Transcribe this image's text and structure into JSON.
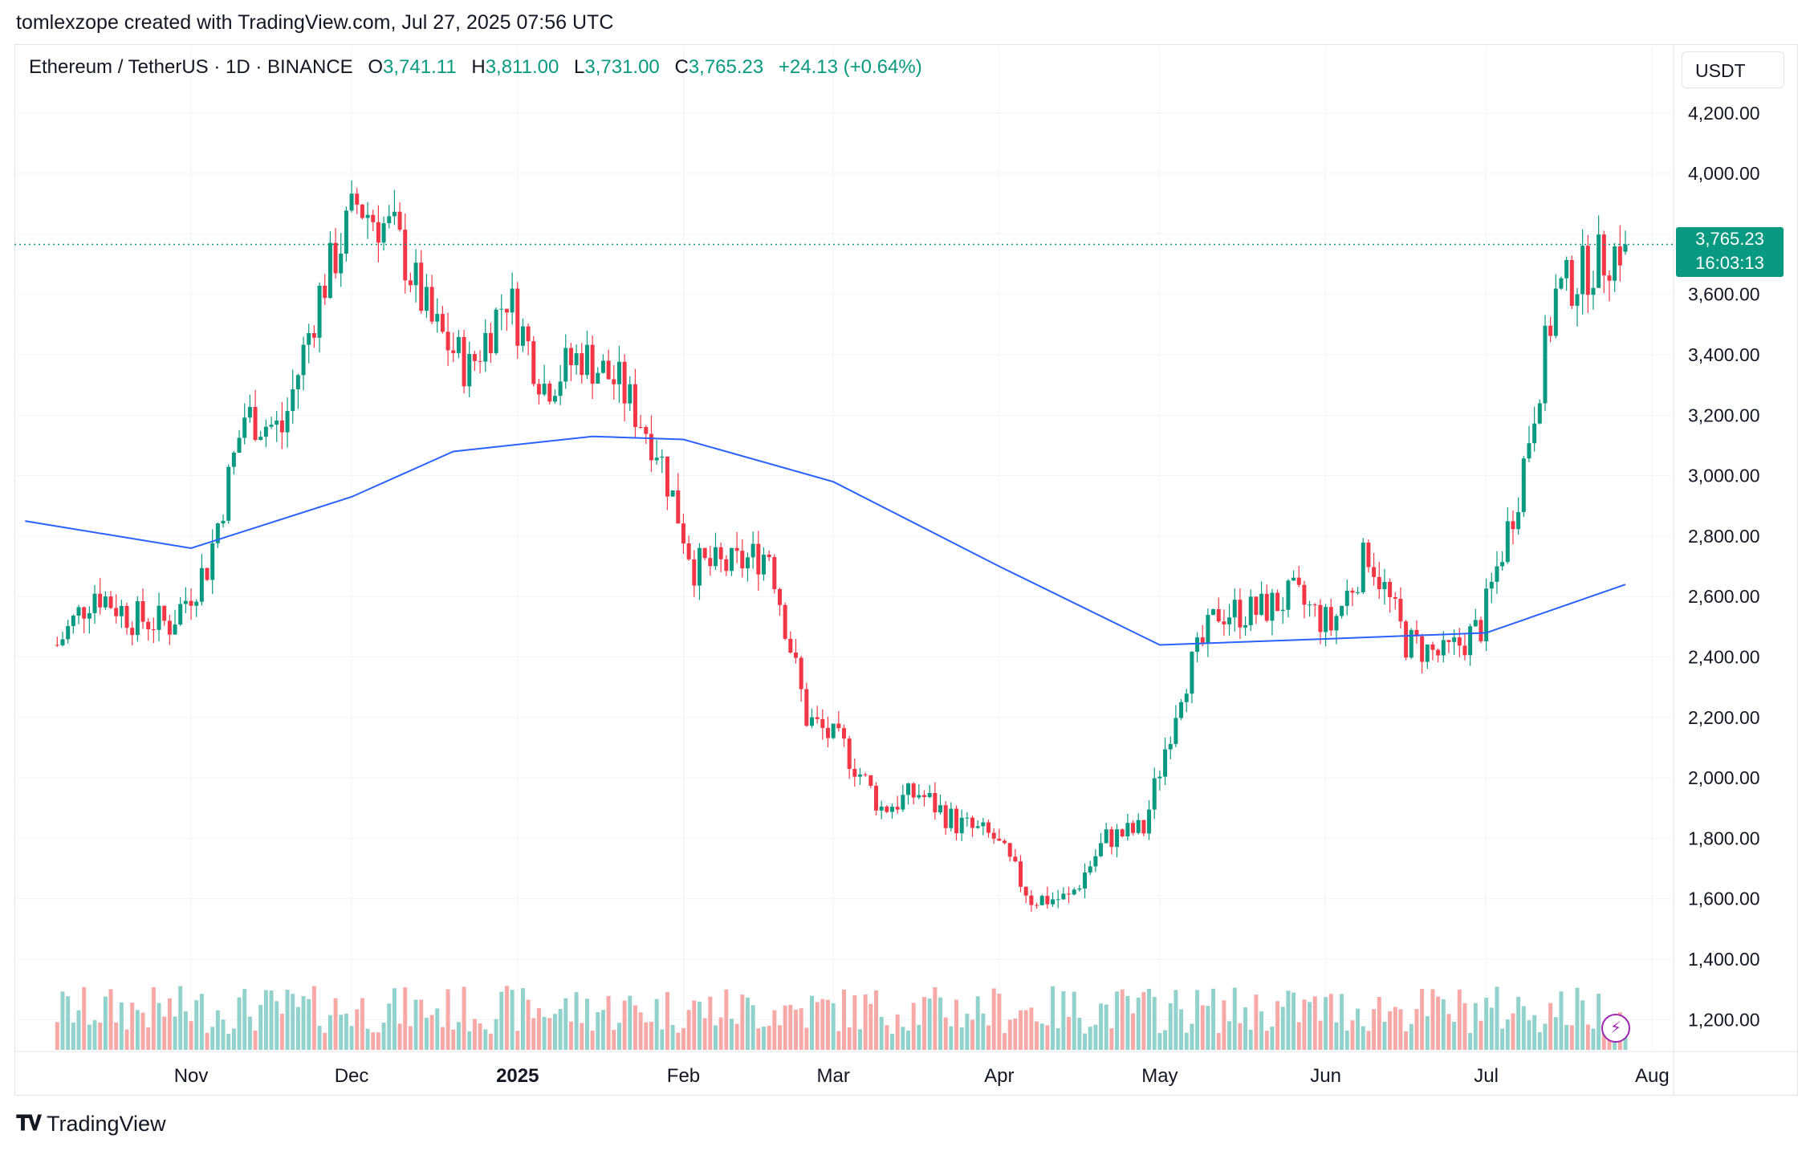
{
  "attribution": "tomlexzope created with TradingView.com, Jul 27, 2025 07:56 UTC",
  "legend": {
    "symbol": "Ethereum / TetherUS · 1D · BINANCE",
    "open_label": "O",
    "open": "3,741.11",
    "high_label": "H",
    "high": "3,811.00",
    "low_label": "L",
    "low": "3,731.00",
    "close_label": "C",
    "close": "3,765.23",
    "change": "+24.13 (+0.64%)"
  },
  "currency": "USDT",
  "price_tag": {
    "price": "3,765.23",
    "countdown": "16:03:13"
  },
  "footer_logo": "TradingView",
  "flash_icon": "lightning-icon",
  "colors": {
    "up": "#089981",
    "down": "#f23645",
    "ma": "#2962ff",
    "up_vol": "#92d2cc",
    "down_vol": "#f7a9a7"
  },
  "chart_data": {
    "type": "candlestick",
    "interval": "1D",
    "x_axis_labels": [
      "Nov",
      "Dec",
      "2025",
      "Feb",
      "Mar",
      "Apr",
      "May",
      "Jun",
      "Jul",
      "Aug"
    ],
    "y_axis_labels": [
      "4,200.00",
      "4,000.00",
      "3,800.00",
      "3,600.00",
      "3,400.00",
      "3,200.00",
      "3,000.00",
      "2,800.00",
      "2,600.00",
      "2,400.00",
      "2,200.00",
      "2,000.00",
      "1,800.00",
      "1,600.00",
      "1,400.00",
      "1,200.00"
    ],
    "ylim": [
      1100,
      4420
    ],
    "grid": true,
    "last_price": 3765.23,
    "close_path": [
      {
        "date": "2024-10-07",
        "close": 2440
      },
      {
        "date": "2024-10-14",
        "close": 2620
      },
      {
        "date": "2024-10-21",
        "close": 2530
      },
      {
        "date": "2024-10-28",
        "close": 2510
      },
      {
        "date": "2024-11-04",
        "close": 2700
      },
      {
        "date": "2024-11-11",
        "close": 3200
      },
      {
        "date": "2024-11-18",
        "close": 3150
      },
      {
        "date": "2024-11-25",
        "close": 3600
      },
      {
        "date": "2024-12-02",
        "close": 3900
      },
      {
        "date": "2024-12-09",
        "close": 3800
      },
      {
        "date": "2024-12-16",
        "close": 3500
      },
      {
        "date": "2024-12-23",
        "close": 3350
      },
      {
        "date": "2024-12-30",
        "close": 3600
      },
      {
        "date": "2025-01-06",
        "close": 3300
      },
      {
        "date": "2025-01-13",
        "close": 3400
      },
      {
        "date": "2025-01-20",
        "close": 3300
      },
      {
        "date": "2025-01-27",
        "close": 3100
      },
      {
        "date": "2025-02-03",
        "close": 2700
      },
      {
        "date": "2025-02-10",
        "close": 2700
      },
      {
        "date": "2025-02-17",
        "close": 2750
      },
      {
        "date": "2025-02-24",
        "close": 2200
      },
      {
        "date": "2025-03-03",
        "close": 2100
      },
      {
        "date": "2025-03-10",
        "close": 1900
      },
      {
        "date": "2025-03-17",
        "close": 1950
      },
      {
        "date": "2025-03-24",
        "close": 1850
      },
      {
        "date": "2025-03-31",
        "close": 1800
      },
      {
        "date": "2025-04-07",
        "close": 1600
      },
      {
        "date": "2025-04-14",
        "close": 1600
      },
      {
        "date": "2025-04-21",
        "close": 1800
      },
      {
        "date": "2025-04-28",
        "close": 1830
      },
      {
        "date": "2025-05-05",
        "close": 2300
      },
      {
        "date": "2025-05-12",
        "close": 2550
      },
      {
        "date": "2025-05-19",
        "close": 2550
      },
      {
        "date": "2025-05-26",
        "close": 2600
      },
      {
        "date": "2025-06-02",
        "close": 2500
      },
      {
        "date": "2025-06-09",
        "close": 2750
      },
      {
        "date": "2025-06-16",
        "close": 2450
      },
      {
        "date": "2025-06-23",
        "close": 2400
      },
      {
        "date": "2025-06-30",
        "close": 2500
      },
      {
        "date": "2025-07-07",
        "close": 2950
      },
      {
        "date": "2025-07-14",
        "close": 3600
      },
      {
        "date": "2025-07-21",
        "close": 3700
      },
      {
        "date": "2025-07-27",
        "close": 3765.23
      }
    ],
    "moving_average": [
      {
        "date": "2024-10-01",
        "value": 2850
      },
      {
        "date": "2024-11-01",
        "value": 2760
      },
      {
        "date": "2024-12-01",
        "value": 2930
      },
      {
        "date": "2024-12-20",
        "value": 3080
      },
      {
        "date": "2025-01-15",
        "value": 3130
      },
      {
        "date": "2025-02-01",
        "value": 3120
      },
      {
        "date": "2025-03-01",
        "value": 2980
      },
      {
        "date": "2025-04-01",
        "value": 2700
      },
      {
        "date": "2025-05-01",
        "value": 2440
      },
      {
        "date": "2025-06-01",
        "value": 2460
      },
      {
        "date": "2025-07-01",
        "value": 2480
      },
      {
        "date": "2025-07-27",
        "value": 2640
      }
    ]
  }
}
